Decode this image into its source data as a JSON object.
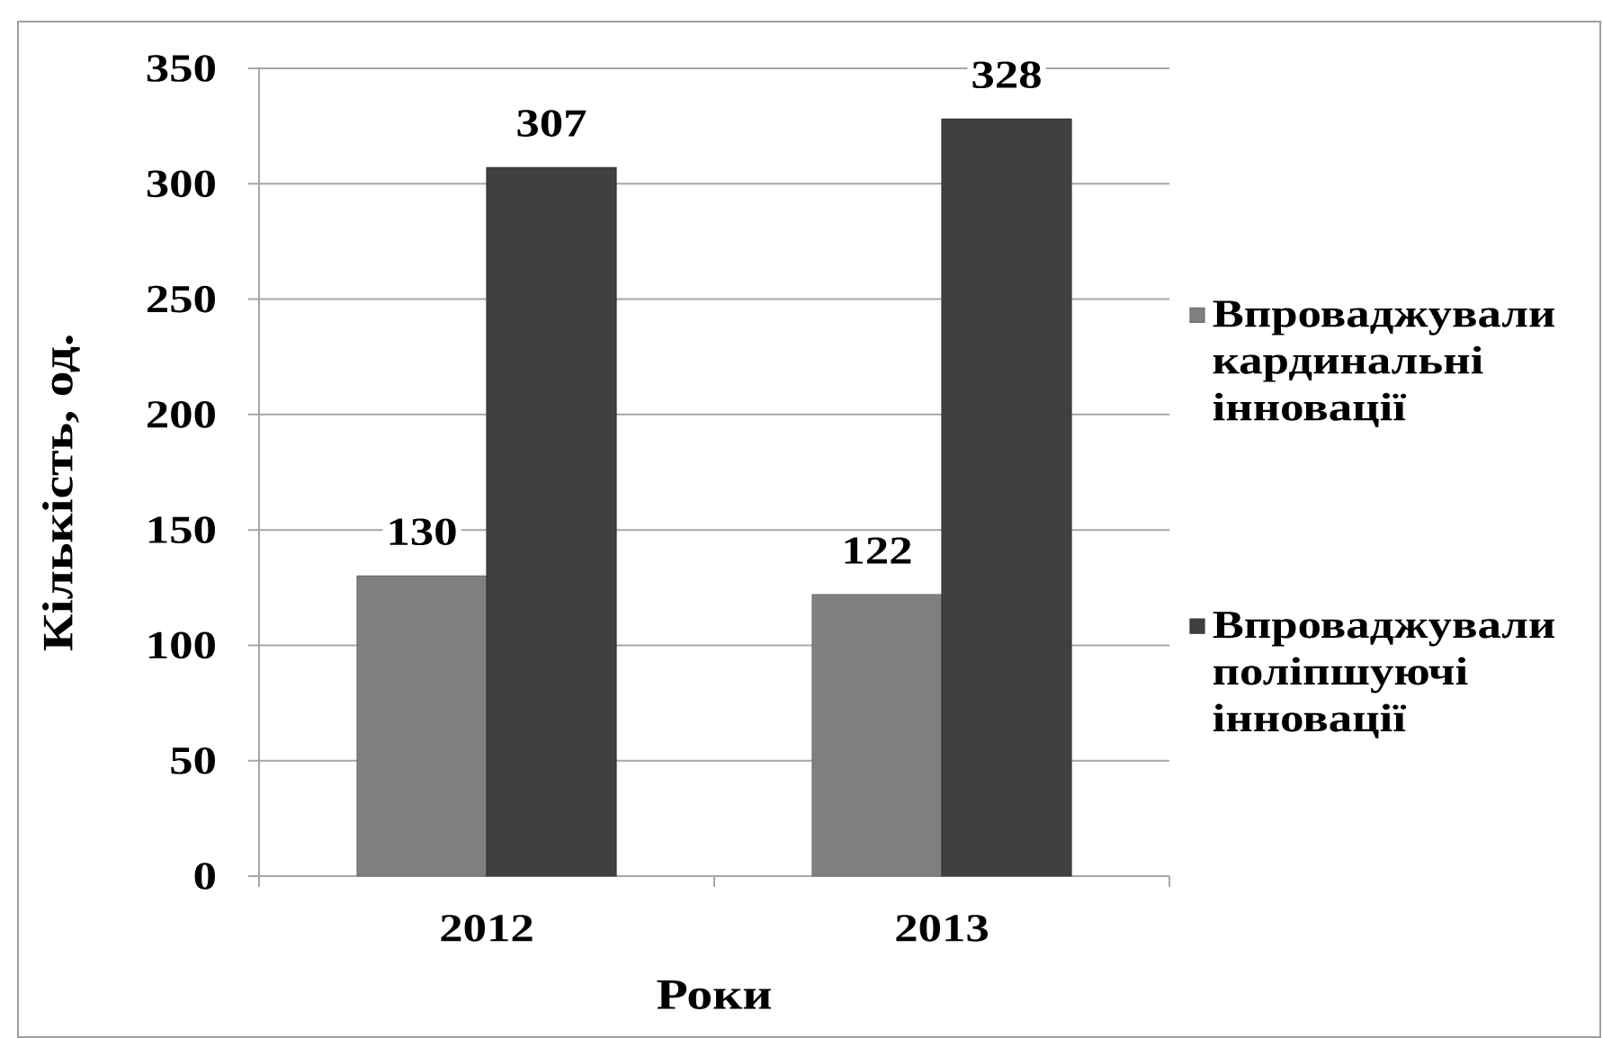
{
  "chart_data": {
    "type": "bar",
    "xlabel": "Роки",
    "ylabel": "Кількість, од.",
    "categories": [
      "2012",
      "2013"
    ],
    "series": [
      {
        "name": "Впроваджували кардинальні інновації",
        "color": "#808080",
        "values": [
          130,
          122
        ]
      },
      {
        "name": "Впроваджували поліпшуючі інновації",
        "color": "#404040",
        "values": [
          307,
          328
        ]
      }
    ],
    "ylim": [
      0,
      350
    ],
    "yticks": [
      0,
      50,
      100,
      150,
      200,
      250,
      300,
      350
    ],
    "grid": "y",
    "legend": "right",
    "data_labels": true
  }
}
